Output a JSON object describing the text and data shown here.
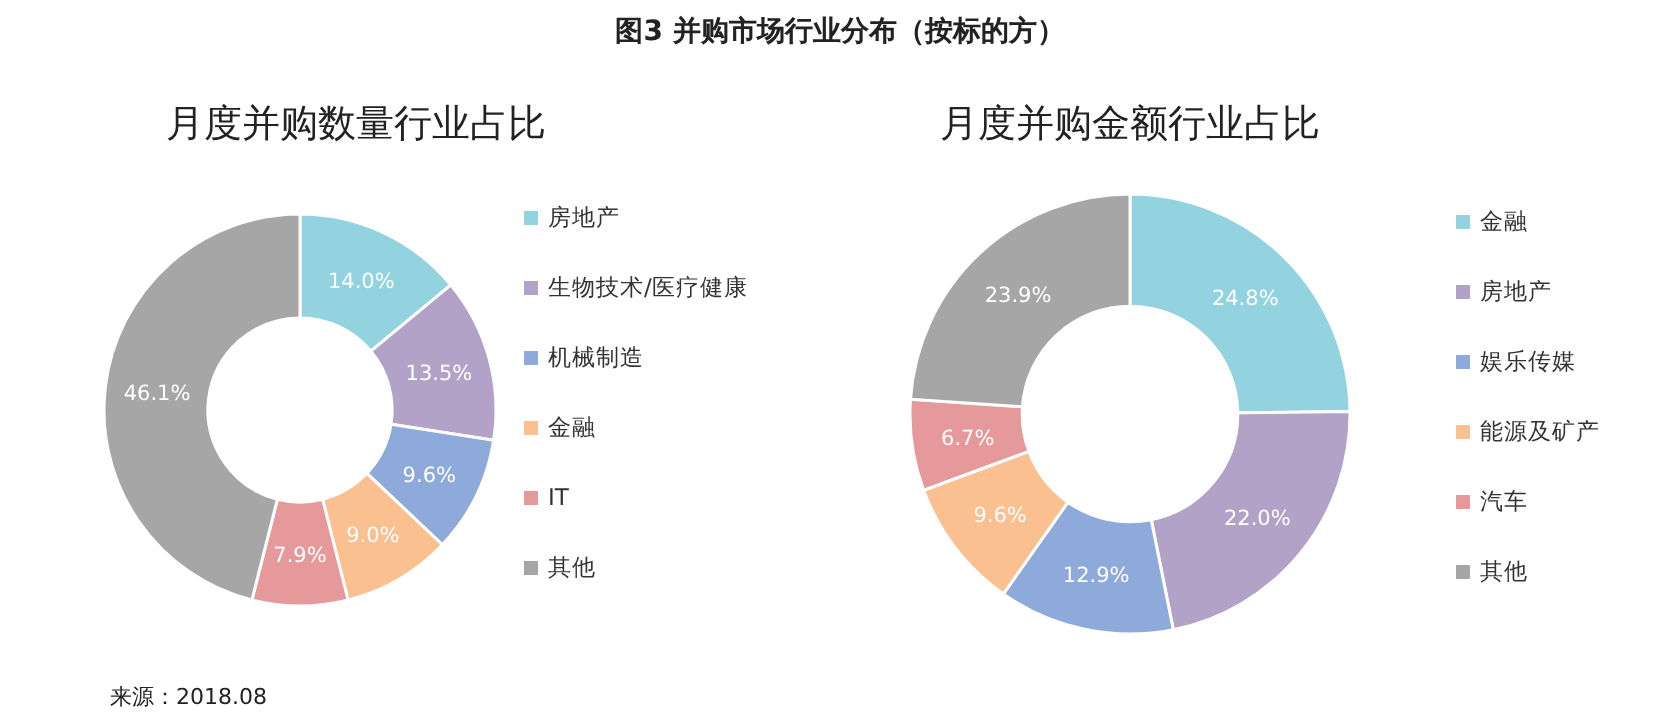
{
  "chart_data": [
    {
      "type": "donut",
      "title": "月度并购数量行业占比",
      "annotations": [
        "图3 并购市场行业分布（按标的方）",
        "来源：2018.08"
      ],
      "legend": "right",
      "value_labels": [
        "14.0%",
        "13.5%",
        "9.6%",
        "9.0%",
        "7.9%",
        "46.1%"
      ],
      "categories": [
        "房地产",
        "生物技术/医疗健康",
        "机械制造",
        "金融",
        "IT",
        "其他"
      ],
      "values": [
        14.0,
        13.5,
        9.6,
        9.0,
        7.9,
        46.1
      ],
      "colors": [
        "#93d3e0",
        "#b3a2c7",
        "#8eaadb",
        "#fac090",
        "#e6999a",
        "#a6a6a6"
      ]
    },
    {
      "type": "donut",
      "title": "月度并购金额行业占比",
      "legend": "right",
      "value_labels": [
        "24.8%",
        "22.0%",
        "12.9%",
        "9.6%",
        "6.7%",
        "23.9%"
      ],
      "categories": [
        "金融",
        "房地产",
        "娱乐传媒",
        "能源及矿产",
        "汽车",
        "其他"
      ],
      "values": [
        24.8,
        22.0,
        12.9,
        9.6,
        6.7,
        23.9
      ],
      "colors": [
        "#93d3e0",
        "#b3a2c7",
        "#8eaadb",
        "#fac090",
        "#e6999a",
        "#a6a6a6"
      ]
    }
  ]
}
